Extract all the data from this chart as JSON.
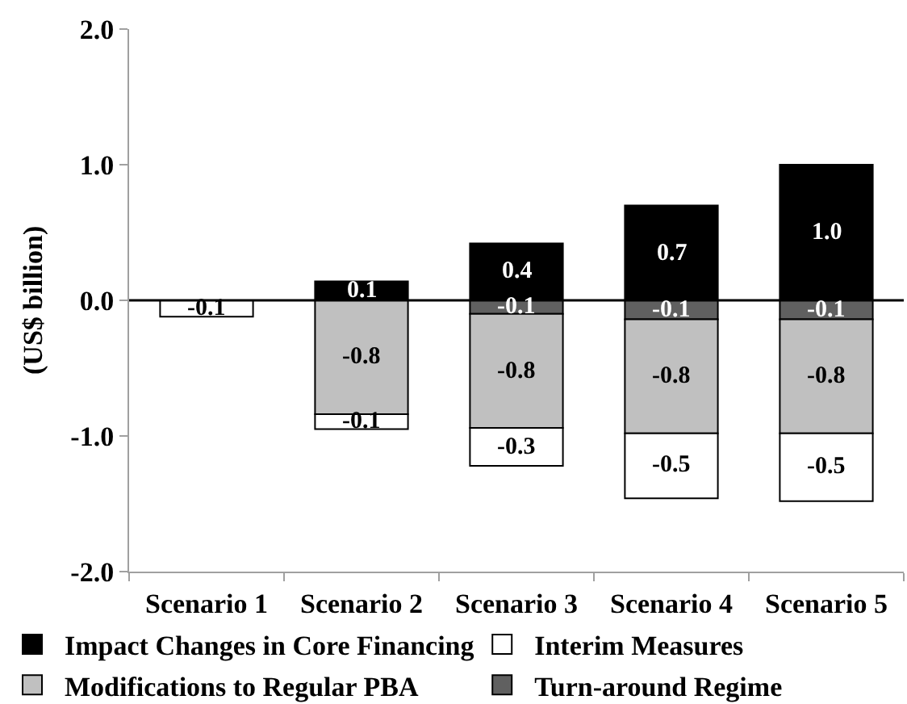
{
  "chart_data": {
    "type": "bar",
    "stacked": true,
    "ylabel": "(US$ billion)",
    "categories": [
      "Scenario 1",
      "Scenario 2",
      "Scenario 3",
      "Scenario 4",
      "Scenario 5"
    ],
    "series": [
      {
        "name": "Turn-around Regime",
        "color": "#606060",
        "values": [
          null,
          null,
          -0.1,
          -0.14,
          -0.14
        ],
        "value_labels": [
          null,
          null,
          "-0.1",
          "-0.1",
          "-0.1"
        ]
      },
      {
        "name": "Modifications to Regular PBA",
        "color": "#c0c0c0",
        "values": [
          null,
          -0.84,
          -0.84,
          -0.84,
          -0.84
        ],
        "value_labels": [
          null,
          "-0.8",
          "-0.8",
          "-0.8",
          "-0.8"
        ]
      },
      {
        "name": "Interim Measures",
        "color": "#ffffff",
        "values": [
          -0.12,
          -0.11,
          -0.28,
          -0.48,
          -0.5
        ],
        "value_labels": [
          "-0.1",
          "-0.1",
          "-0.3",
          "-0.5",
          "-0.5"
        ]
      },
      {
        "name": "Impact Changes in Core Financing",
        "color": "#000000",
        "values": [
          null,
          0.14,
          0.42,
          0.7,
          1.0
        ],
        "value_labels": [
          null,
          "0.1",
          "0.4",
          "0.7",
          "1.0"
        ]
      }
    ],
    "ylim": [
      -2.0,
      2.0
    ],
    "yticks": [
      {
        "value": 2,
        "label": "2.0"
      },
      {
        "value": 1,
        "label": "1.0"
      },
      {
        "value": 0,
        "label": "0.0"
      },
      {
        "value": -1,
        "label": "-1.0"
      },
      {
        "value": -2,
        "label": "-2.0"
      }
    ],
    "ref_lines": [
      {
        "axis": "y",
        "value": 0,
        "color": "#000000"
      }
    ],
    "grid": false,
    "legend": "bottom"
  }
}
